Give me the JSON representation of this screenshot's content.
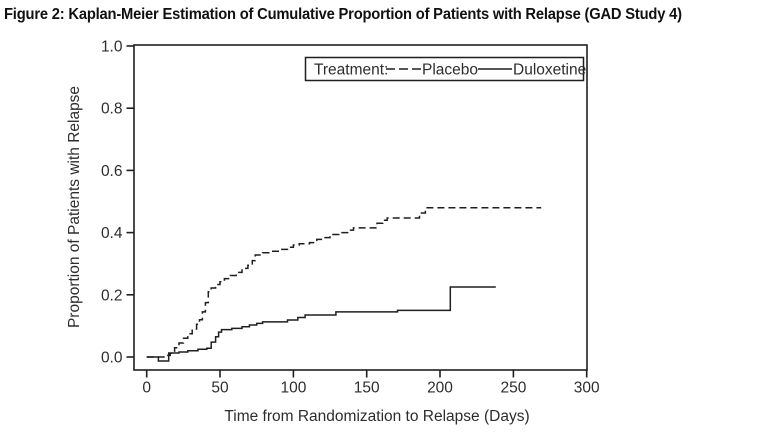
{
  "figure": {
    "title": "Figure 2: Kaplan-Meier Estimation of Cumulative Proportion of Patients with Relapse (GAD Study 4)"
  },
  "colors": {
    "line": "#1f1f1f",
    "text": "#2d2d2d",
    "background": "#ffffff"
  },
  "chart_data": {
    "type": "line",
    "subtype": "kaplan_meier_step",
    "title": "Figure 2: Kaplan-Meier Estimation of Cumulative Proportion of Patients with Relapse (GAD Study 4)",
    "xlabel": "Time from Randomization to Relapse (Days)",
    "ylabel": "Proportion of Patients with Relapse",
    "xlim": [
      0,
      300
    ],
    "ylim": [
      0.0,
      1.0
    ],
    "xticks": [
      "0",
      "50",
      "100",
      "150",
      "200",
      "250",
      "300"
    ],
    "yticks": [
      "0.0",
      "0.2",
      "0.4",
      "0.6",
      "0.8",
      "1.0"
    ],
    "grid": false,
    "legend": {
      "title": "Treatment:",
      "position": "top-right-inside",
      "entries": [
        "Placebo",
        "Duloxetine"
      ]
    },
    "series": [
      {
        "name": "Placebo",
        "style": "dashed",
        "color": "#1f1f1f",
        "points": [
          [
            0,
            0.0
          ],
          [
            13,
            0.005
          ],
          [
            16,
            0.012
          ],
          [
            19,
            0.03
          ],
          [
            22,
            0.045
          ],
          [
            25,
            0.06
          ],
          [
            28,
            0.075
          ],
          [
            31,
            0.09
          ],
          [
            34,
            0.105
          ],
          [
            36,
            0.12
          ],
          [
            38,
            0.145
          ],
          [
            40,
            0.175
          ],
          [
            42,
            0.21
          ],
          [
            44,
            0.222
          ],
          [
            47,
            0.233
          ],
          [
            50,
            0.242
          ],
          [
            53,
            0.252
          ],
          [
            57,
            0.262
          ],
          [
            61,
            0.272
          ],
          [
            65,
            0.285
          ],
          [
            69,
            0.295
          ],
          [
            72,
            0.31
          ],
          [
            74,
            0.328
          ],
          [
            79,
            0.335
          ],
          [
            85,
            0.34
          ],
          [
            91,
            0.346
          ],
          [
            96,
            0.353
          ],
          [
            100,
            0.36
          ],
          [
            104,
            0.364
          ],
          [
            111,
            0.368
          ],
          [
            116,
            0.378
          ],
          [
            121,
            0.384
          ],
          [
            125,
            0.394
          ],
          [
            131,
            0.4
          ],
          [
            137,
            0.408
          ],
          [
            141,
            0.415
          ],
          [
            157,
            0.43
          ],
          [
            161,
            0.44
          ],
          [
            164,
            0.447
          ],
          [
            186,
            0.463
          ],
          [
            190,
            0.48
          ],
          [
            269,
            0.48
          ]
        ]
      },
      {
        "name": "Duloxetine",
        "style": "solid",
        "color": "#1f1f1f",
        "points": [
          [
            0,
            0.0
          ],
          [
            8,
            -0.013
          ],
          [
            15,
            0.013
          ],
          [
            22,
            0.016
          ],
          [
            28,
            0.02
          ],
          [
            35,
            0.025
          ],
          [
            41,
            0.028
          ],
          [
            44,
            0.048
          ],
          [
            47,
            0.065
          ],
          [
            49,
            0.08
          ],
          [
            51,
            0.088
          ],
          [
            58,
            0.092
          ],
          [
            65,
            0.097
          ],
          [
            70,
            0.103
          ],
          [
            75,
            0.108
          ],
          [
            79,
            0.113
          ],
          [
            96,
            0.119
          ],
          [
            103,
            0.127
          ],
          [
            108,
            0.135
          ],
          [
            129,
            0.145
          ],
          [
            171,
            0.15
          ],
          [
            207,
            0.225
          ],
          [
            238,
            0.225
          ]
        ]
      }
    ]
  }
}
